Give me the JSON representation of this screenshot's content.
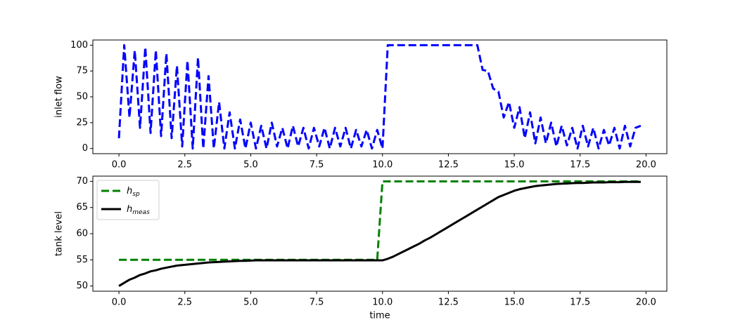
{
  "chart_data": [
    {
      "type": "line",
      "ylabel": "inlet flow",
      "x": [
        0,
        0.2,
        0.4,
        0.6,
        0.8,
        1,
        1.2,
        1.4,
        1.6,
        1.8,
        2,
        2.2,
        2.4,
        2.6,
        2.8,
        3,
        3.2,
        3.4,
        3.6,
        3.8,
        4,
        4.2,
        4.4,
        4.6,
        4.8,
        5,
        5.2,
        5.4,
        5.6,
        5.8,
        6,
        6.2,
        6.4,
        6.6,
        6.8,
        7,
        7.2,
        7.4,
        7.6,
        7.8,
        8,
        8.2,
        8.4,
        8.6,
        8.8,
        9,
        9.2,
        9.4,
        9.6,
        9.8,
        10,
        10.2,
        10.4,
        10.6,
        10.8,
        11,
        11.2,
        11.4,
        11.6,
        11.8,
        12,
        12.2,
        12.4,
        12.6,
        12.8,
        13,
        13.2,
        13.4,
        13.6,
        13.8,
        14,
        14.2,
        14.4,
        14.6,
        14.8,
        15,
        15.2,
        15.4,
        15.6,
        15.8,
        16,
        16.2,
        16.4,
        16.6,
        16.8,
        17,
        17.2,
        17.4,
        17.6,
        17.8,
        18,
        18.2,
        18.4,
        18.6,
        18.8,
        19,
        19.2,
        19.4,
        19.6,
        19.8
      ],
      "series": [
        {
          "color": "#0000ff",
          "linestyle": "dashed",
          "values": [
            10,
            100,
            30,
            95,
            20,
            98,
            15,
            95,
            12,
            92,
            10,
            80,
            2,
            85,
            0,
            88,
            0,
            70,
            0,
            45,
            0,
            35,
            0,
            28,
            0,
            25,
            0,
            22,
            0,
            25,
            2,
            20,
            0,
            22,
            2,
            20,
            0,
            20,
            2,
            20,
            0,
            20,
            2,
            20,
            0,
            18,
            2,
            18,
            0,
            18,
            0,
            100,
            100,
            100,
            100,
            100,
            100,
            100,
            100,
            100,
            100,
            100,
            100,
            100,
            100,
            100,
            100,
            100,
            100,
            76,
            75,
            58,
            55,
            30,
            45,
            20,
            40,
            10,
            35,
            5,
            30,
            5,
            25,
            2,
            22,
            3,
            20,
            0,
            22,
            2,
            20,
            0,
            18,
            3,
            20,
            0,
            22,
            2,
            20,
            22
          ]
        }
      ],
      "xlim": [
        -0.99,
        20.79
      ],
      "xticks": [
        {
          "value": 0,
          "label": "0.0"
        },
        2.5,
        {
          "value": 5,
          "label": "5.0"
        },
        7.5,
        {
          "value": 10,
          "label": "10.0"
        },
        12.5,
        {
          "value": 15,
          "label": "15.0"
        },
        17.5,
        {
          "value": 20,
          "label": "20.0"
        }
      ],
      "ylim": [
        -5,
        105
      ],
      "yticks": [
        0,
        25,
        50,
        75,
        100
      ]
    },
    {
      "type": "line",
      "ylabel": "tank level",
      "xlabel": "time",
      "legend": "upper left",
      "x": [
        0,
        0.2,
        0.4,
        0.6,
        0.8,
        1,
        1.2,
        1.4,
        1.6,
        1.8,
        2,
        2.2,
        2.4,
        2.6,
        2.8,
        3,
        3.2,
        3.4,
        3.6,
        3.8,
        4,
        4.2,
        4.4,
        4.6,
        4.8,
        5,
        5.2,
        5.4,
        5.6,
        5.8,
        6,
        6.2,
        6.4,
        6.6,
        6.8,
        7,
        7.2,
        7.4,
        7.6,
        7.8,
        8,
        8.2,
        8.4,
        8.6,
        8.8,
        9,
        9.2,
        9.4,
        9.6,
        9.8,
        10,
        10.2,
        10.4,
        10.6,
        10.8,
        11,
        11.2,
        11.4,
        11.6,
        11.8,
        12,
        12.2,
        12.4,
        12.6,
        12.8,
        13,
        13.2,
        13.4,
        13.6,
        13.8,
        14,
        14.2,
        14.4,
        14.6,
        14.8,
        15,
        15.2,
        15.4,
        15.6,
        15.8,
        16,
        16.2,
        16.4,
        16.6,
        16.8,
        17,
        17.2,
        17.4,
        17.6,
        17.8,
        18,
        18.2,
        18.4,
        18.6,
        18.8,
        19,
        19.2,
        19.4,
        19.6,
        19.8
      ],
      "series": [
        {
          "name": "hsp",
          "color": "#008000",
          "linestyle": "dashed",
          "values": [
            55,
            55,
            55,
            55,
            55,
            55,
            55,
            55,
            55,
            55,
            55,
            55,
            55,
            55,
            55,
            55,
            55,
            55,
            55,
            55,
            55,
            55,
            55,
            55,
            55,
            55,
            55,
            55,
            55,
            55,
            55,
            55,
            55,
            55,
            55,
            55,
            55,
            55,
            55,
            55,
            55,
            55,
            55,
            55,
            55,
            55,
            55,
            55,
            55,
            55,
            70,
            70,
            70,
            70,
            70,
            70,
            70,
            70,
            70,
            70,
            70,
            70,
            70,
            70,
            70,
            70,
            70,
            70,
            70,
            70,
            70,
            70,
            70,
            70,
            70,
            70,
            70,
            70,
            70,
            70,
            70,
            70,
            70,
            70,
            70,
            70,
            70,
            70,
            70,
            70,
            70,
            70,
            70,
            70,
            70,
            70,
            70,
            70,
            70,
            70
          ]
        },
        {
          "name": "hmeas",
          "color": "#000000",
          "linestyle": "solid",
          "values": [
            50,
            50.6,
            51.2,
            51.6,
            52.1,
            52.4,
            52.8,
            53,
            53.3,
            53.5,
            53.7,
            53.9,
            54,
            54.1,
            54.2,
            54.3,
            54.4,
            54.5,
            54.55,
            54.6,
            54.65,
            54.7,
            54.75,
            54.8,
            54.8,
            54.85,
            54.9,
            54.9,
            54.9,
            54.9,
            54.9,
            54.9,
            54.9,
            54.9,
            54.9,
            54.9,
            54.9,
            54.9,
            54.9,
            54.9,
            54.9,
            54.9,
            54.9,
            54.9,
            54.9,
            54.9,
            54.9,
            54.9,
            54.9,
            54.9,
            54.9,
            55.2,
            55.6,
            56.1,
            56.6,
            57.1,
            57.6,
            58.1,
            58.7,
            59.2,
            59.8,
            60.4,
            61,
            61.6,
            62.2,
            62.8,
            63.4,
            64,
            64.6,
            65.2,
            65.8,
            66.4,
            67,
            67.4,
            67.8,
            68.2,
            68.5,
            68.7,
            68.9,
            69.1,
            69.2,
            69.3,
            69.4,
            69.5,
            69.55,
            69.6,
            69.65,
            69.7,
            69.7,
            69.75,
            69.8,
            69.8,
            69.8,
            69.85,
            69.85,
            69.85,
            69.9,
            69.9,
            69.9,
            69.9
          ]
        }
      ],
      "xlim": [
        -0.99,
        20.79
      ],
      "xticks": [
        {
          "value": 0,
          "label": "0.0"
        },
        2.5,
        {
          "value": 5,
          "label": "5.0"
        },
        7.5,
        {
          "value": 10,
          "label": "10.0"
        },
        12.5,
        {
          "value": 15,
          "label": "15.0"
        },
        17.5,
        {
          "value": 20,
          "label": "20.0"
        }
      ],
      "ylim": [
        49,
        71
      ],
      "yticks": [
        50,
        55,
        60,
        65,
        70
      ]
    }
  ]
}
